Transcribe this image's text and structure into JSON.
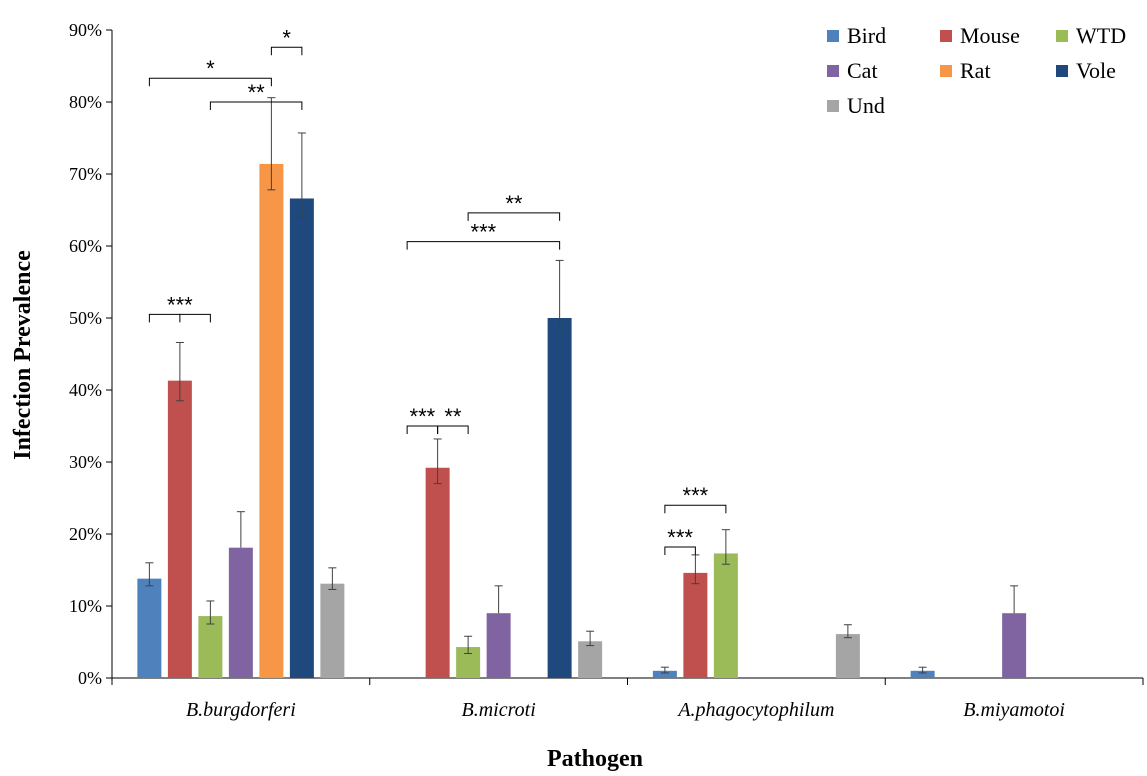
{
  "chart_data": {
    "type": "bar",
    "xlabel": "Pathogen",
    "ylabel": "Infection Prevalence",
    "ylim": [
      0,
      90
    ],
    "yticks": [
      "0%",
      "10%",
      "20%",
      "30%",
      "40%",
      "50%",
      "60%",
      "70%",
      "80%",
      "90%"
    ],
    "ytick_values": [
      0,
      10,
      20,
      30,
      40,
      50,
      60,
      70,
      80,
      90
    ],
    "categories": [
      "B.burgdorferi",
      "B.microti",
      "A.phagocytophilum",
      "B.miyamotoi"
    ],
    "legend_position": "top-right",
    "grid": false,
    "series": [
      {
        "name": "Bird",
        "color": "#4f81bd",
        "values": [
          13.8,
          null,
          1.0,
          1.0
        ],
        "err_lo": [
          1.0,
          null,
          0.3,
          0.3
        ],
        "err_hi": [
          2.2,
          null,
          0.5,
          0.5
        ]
      },
      {
        "name": "Mouse",
        "color": "#c0504d",
        "values": [
          41.3,
          29.2,
          14.6,
          null
        ],
        "err_lo": [
          2.8,
          2.2,
          1.5,
          null
        ],
        "err_hi": [
          5.3,
          4.0,
          2.5,
          null
        ]
      },
      {
        "name": "WTD",
        "color": "#9bbb59",
        "values": [
          8.6,
          4.3,
          17.3,
          null
        ],
        "err_lo": [
          1.1,
          0.9,
          1.5,
          null
        ],
        "err_hi": [
          2.1,
          1.5,
          3.3,
          null
        ]
      },
      {
        "name": "Cat",
        "color": "#8064a2",
        "values": [
          18.1,
          9.0,
          null,
          9.0
        ],
        "err_lo": [
          0.0,
          0.0,
          null,
          0.0
        ],
        "err_hi": [
          5.0,
          3.8,
          null,
          3.8
        ]
      },
      {
        "name": "Rat",
        "color": "#f79646",
        "values": [
          71.4,
          null,
          null,
          null
        ],
        "err_lo": [
          3.6,
          null,
          null,
          null
        ],
        "err_hi": [
          9.2,
          null,
          null,
          null
        ]
      },
      {
        "name": "Vole",
        "color": "#1f497d",
        "values": [
          66.6,
          50.0,
          null,
          null
        ],
        "err_lo": [
          2.6,
          1.6,
          null,
          null
        ],
        "err_hi": [
          9.1,
          8.0,
          null,
          null
        ]
      },
      {
        "name": "Und",
        "color": "#a5a5a5",
        "values": [
          13.1,
          5.1,
          6.1,
          null
        ],
        "err_lo": [
          0.8,
          0.6,
          0.5,
          null
        ],
        "err_hi": [
          2.2,
          1.4,
          1.3,
          null
        ]
      }
    ],
    "annotations": [
      {
        "label": "*",
        "category": 0,
        "from": "Rat",
        "to": "Vole",
        "y": 87.6
      },
      {
        "label": "**",
        "category": 0,
        "from": "Rat",
        "to": "Vole",
        "y": 80.0,
        "start_at": "WTD"
      },
      {
        "label": "*",
        "category": 0,
        "from": "Bird",
        "to": "Rat",
        "y": 83.3
      },
      {
        "label": "***",
        "category": 0,
        "from": "Bird",
        "to": "Mouse",
        "y": 50.5,
        "pair_right": "WTD"
      },
      {
        "label": "**",
        "category": 1,
        "from": "WTD",
        "to": "Vole",
        "y": 64.6
      },
      {
        "label": "***",
        "category": 1,
        "from": "Bird",
        "to": "Vole",
        "y": 60.6
      },
      {
        "label": "***",
        "category": 1,
        "from": "Bird",
        "to": "Mouse",
        "y": 35.0
      },
      {
        "label": "**",
        "category": 1,
        "from": "Mouse",
        "to": "WTD",
        "y": 35.0
      },
      {
        "label": "***",
        "category": 2,
        "from": "Bird",
        "to": "WTD",
        "y": 24.0
      },
      {
        "label": "***",
        "category": 2,
        "from": "Bird",
        "to": "Mouse",
        "y": 18.2
      }
    ]
  }
}
